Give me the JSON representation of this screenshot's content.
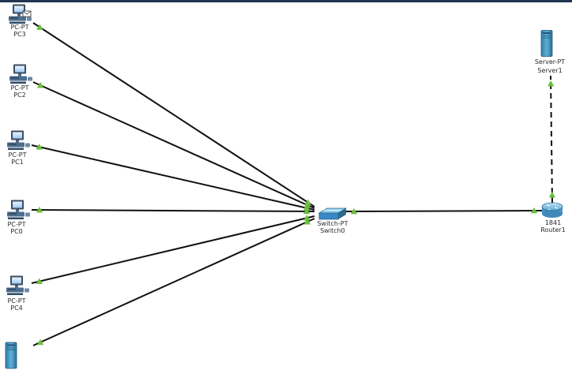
{
  "colors": {
    "link": "#111111",
    "link_up_marker": "#6cbf3f",
    "device_blue": "#3a86c8",
    "topbar": "#1f3550"
  },
  "devices": {
    "pc3": {
      "type": "PC-PT",
      "name": "PC3",
      "icon": "pc-with-envelope-icon"
    },
    "pc2": {
      "type": "PC-PT",
      "name": "PC2",
      "icon": "pc-icon"
    },
    "pc1": {
      "type": "PC-PT",
      "name": "PC1",
      "icon": "pc-icon"
    },
    "pc0": {
      "type": "PC-PT",
      "name": "PC0",
      "icon": "pc-icon"
    },
    "pc4": {
      "type": "PC-PT",
      "name": "PC4",
      "icon": "pc-icon"
    },
    "server_bottom": {
      "icon": "server-icon"
    },
    "switch0": {
      "type": "Switch-PT",
      "name": "Switch0",
      "icon": "switch-icon"
    },
    "router1": {
      "type": "1841",
      "name": "Router1",
      "icon": "router-icon"
    },
    "server1": {
      "type": "Server-PT",
      "name": "Server1",
      "icon": "server-icon"
    }
  },
  "links": [
    {
      "from": "pc3",
      "to": "switch0",
      "style": "solid",
      "status": "up"
    },
    {
      "from": "pc2",
      "to": "switch0",
      "style": "solid",
      "status": "up"
    },
    {
      "from": "pc1",
      "to": "switch0",
      "style": "solid",
      "status": "up"
    },
    {
      "from": "pc0",
      "to": "switch0",
      "style": "solid",
      "status": "up"
    },
    {
      "from": "pc4",
      "to": "switch0",
      "style": "solid",
      "status": "up"
    },
    {
      "from": "server_bottom",
      "to": "switch0",
      "style": "solid",
      "status": "up"
    },
    {
      "from": "switch0",
      "to": "router1",
      "style": "solid",
      "status": "up"
    },
    {
      "from": "router1",
      "to": "server1",
      "style": "dashed",
      "status": "up"
    }
  ]
}
